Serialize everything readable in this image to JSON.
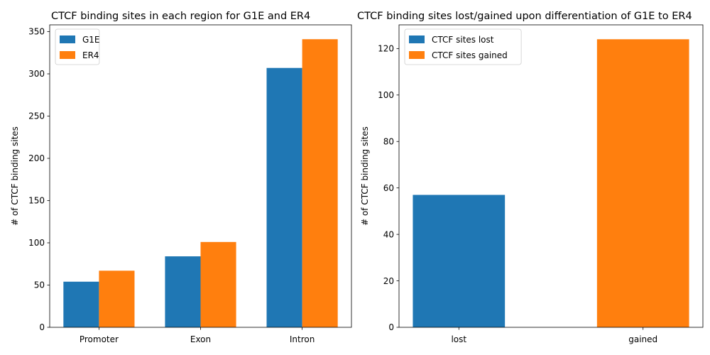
{
  "chart_data": [
    {
      "type": "bar",
      "title": "CTCF binding sites in each region for G1E and ER4",
      "xlabel": "",
      "ylabel": "# of CTCF binding sites",
      "categories": [
        "Promoter",
        "Exon",
        "Intron"
      ],
      "series": [
        {
          "name": "G1E",
          "values": [
            54,
            84,
            307
          ],
          "color": "#1f77b4"
        },
        {
          "name": "ER4",
          "values": [
            67,
            101,
            341
          ],
          "color": "#ff7f0e"
        }
      ],
      "ylim": [
        0,
        358
      ],
      "yticks": [
        0,
        50,
        100,
        150,
        200,
        250,
        300,
        350
      ],
      "legend": "top-left",
      "grid": false
    },
    {
      "type": "bar",
      "title": "CTCF binding sites lost/gained upon differentiation of G1E to ER4",
      "xlabel": "",
      "ylabel": "# of CTCF binding sites",
      "categories": [
        "lost",
        "gained"
      ],
      "series": [
        {
          "name": "CTCF sites lost",
          "values": [
            57,
            null
          ],
          "color": "#1f77b4"
        },
        {
          "name": "CTCF sites gained",
          "values": [
            null,
            124
          ],
          "color": "#ff7f0e"
        }
      ],
      "ylim": [
        0,
        130.2
      ],
      "yticks": [
        0,
        20,
        40,
        60,
        80,
        100,
        120
      ],
      "legend": "top-left",
      "grid": false
    }
  ]
}
